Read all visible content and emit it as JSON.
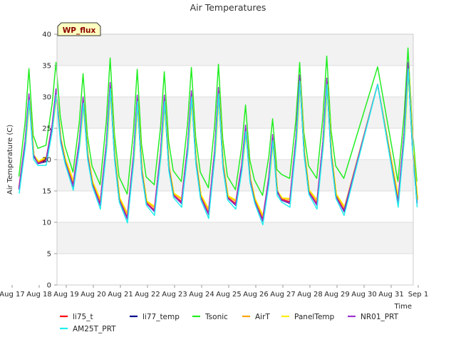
{
  "chart_data": {
    "type": "line",
    "title": "Air Temperatures",
    "xlabel": "Time",
    "ylabel": "Air Temperature (C)",
    "badge": "WP_flux",
    "ylim": [
      0,
      40
    ],
    "xlim": [
      0,
      15
    ],
    "x_ticks": [
      {
        "x": 0,
        "label": "Aug 17"
      },
      {
        "x": 1,
        "label": "Aug 18"
      },
      {
        "x": 2,
        "label": "Aug 19"
      },
      {
        "x": 3,
        "label": "Aug 20"
      },
      {
        "x": 4,
        "label": "Aug 21"
      },
      {
        "x": 5,
        "label": "Aug 22"
      },
      {
        "x": 6,
        "label": "Aug 23"
      },
      {
        "x": 7,
        "label": "Aug 24"
      },
      {
        "x": 8,
        "label": "Aug 25"
      },
      {
        "x": 9,
        "label": "Aug 26"
      },
      {
        "x": 10,
        "label": "Aug 27"
      },
      {
        "x": 11,
        "label": "Aug 28"
      },
      {
        "x": 12,
        "label": "Aug 29"
      },
      {
        "x": 13,
        "label": "Aug 30"
      },
      {
        "x": 14,
        "label": "Aug 31"
      },
      {
        "x": 15,
        "label": "Sep 1"
      }
    ],
    "y_ticks": [
      0,
      5,
      10,
      15,
      20,
      25,
      30,
      35,
      40
    ],
    "grid": true,
    "legend_position": "bottom",
    "series": [
      {
        "name": "li75_t",
        "color": "#ff0000"
      },
      {
        "name": "li77_temp",
        "color": "#00008b"
      },
      {
        "name": "Tsonic",
        "color": "#22ee22"
      },
      {
        "name": "AirT",
        "color": "#ffa500"
      },
      {
        "name": "PanelTemp",
        "color": "#ffee00"
      },
      {
        "name": "NR01_PRT",
        "color": "#9933cc"
      },
      {
        "name": "AM25T_PRT",
        "color": "#22eeee"
      }
    ],
    "days": [
      {
        "x": 0.0,
        "base_min": 15.0,
        "base_max": 30.0,
        "tsonic_min": 17.3,
        "tsonic_max": 34.5
      },
      {
        "x": 1.0,
        "base_min": 19.5,
        "base_max": 30.8,
        "tsonic_min": 22.3,
        "tsonic_max": 35.5
      },
      {
        "x": 2.0,
        "base_min": 15.5,
        "base_max": 29.5,
        "tsonic_min": 18.0,
        "tsonic_max": 33.7
      },
      {
        "x": 3.0,
        "base_min": 12.5,
        "base_max": 31.8,
        "tsonic_min": 16.0,
        "tsonic_max": 36.2
      },
      {
        "x": 4.0,
        "base_min": 10.3,
        "base_max": 29.8,
        "tsonic_min": 14.5,
        "tsonic_max": 34.4
      },
      {
        "x": 5.0,
        "base_min": 11.5,
        "base_max": 29.8,
        "tsonic_min": 16.0,
        "tsonic_max": 34.0
      },
      {
        "x": 6.0,
        "base_min": 12.8,
        "base_max": 30.5,
        "tsonic_min": 16.5,
        "tsonic_max": 34.7
      },
      {
        "x": 7.0,
        "base_min": 11.0,
        "base_max": 31.0,
        "tsonic_min": 15.5,
        "tsonic_max": 35.2
      },
      {
        "x": 8.0,
        "base_min": 12.5,
        "base_max": 25.0,
        "tsonic_min": 15.2,
        "tsonic_max": 28.7
      },
      {
        "x": 9.0,
        "base_min": 10.0,
        "base_max": 23.5,
        "tsonic_min": 14.3,
        "tsonic_max": 26.5
      },
      {
        "x": 10.0,
        "base_min": 12.8,
        "base_max": 33.0,
        "tsonic_min": 17.0,
        "tsonic_max": 35.5
      },
      {
        "x": 11.0,
        "base_min": 12.5,
        "base_max": 32.5,
        "tsonic_min": 17.0,
        "tsonic_max": 36.5
      },
      {
        "x": 12.0,
        "base_min": 11.5,
        "base_max": 19.0,
        "tsonic_min": 17.0,
        "tsonic_max": 23.0
      },
      {
        "x": 14.0,
        "base_min": 12.8,
        "base_max": 35.0,
        "tsonic_min": 16.5,
        "tsonic_max": 37.8
      }
    ]
  }
}
